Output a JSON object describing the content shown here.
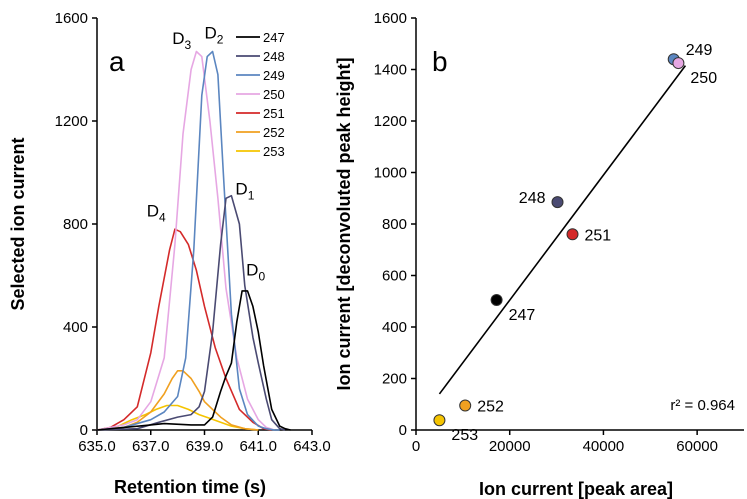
{
  "chart_data": [
    {
      "panel_label": "a",
      "type": "line",
      "xlabel": "Retention time (s)",
      "ylabel": "Selected ion current",
      "xlim": [
        635.0,
        643.0
      ],
      "ylim": [
        0,
        1600
      ],
      "x_ticks": [
        "635.0",
        "637.0",
        "639.0",
        "641.0",
        "643.0"
      ],
      "x_tick_values": [
        635,
        637,
        639,
        641,
        643
      ],
      "y_ticks": [
        "0",
        "400",
        "800",
        "1200",
        "1600"
      ],
      "y_tick_values": [
        0,
        400,
        800,
        1200,
        1600
      ],
      "legend_position": "top-right",
      "series": [
        {
          "name": "247",
          "color": "#000000",
          "peak_label": "D",
          "peak_sub": "0",
          "label_at": [
            640.55,
            600
          ],
          "x": [
            635.0,
            637.0,
            637.5,
            638.5,
            639.0,
            639.3,
            639.6,
            639.8,
            640.0,
            640.2,
            640.4,
            640.6,
            640.8,
            641.0,
            641.2,
            641.5,
            641.8,
            642.0,
            642.2
          ],
          "y": [
            0,
            20,
            25,
            20,
            20,
            50,
            150,
            210,
            260,
            420,
            540,
            540,
            480,
            380,
            250,
            80,
            15,
            5,
            0
          ]
        },
        {
          "name": "248",
          "color": "#4a4a72",
          "peak_label": "D",
          "peak_sub": "1",
          "label_at": [
            640.15,
            915
          ],
          "x": [
            635.0,
            636.5,
            637.3,
            638.0,
            638.5,
            638.8,
            639.0,
            639.3,
            639.6,
            639.8,
            640.0,
            640.3,
            640.5,
            640.8,
            641.0,
            641.3,
            641.5,
            641.8,
            642.0
          ],
          "y": [
            0,
            5,
            30,
            50,
            60,
            90,
            150,
            380,
            720,
            900,
            910,
            800,
            560,
            360,
            260,
            120,
            40,
            5,
            0
          ]
        },
        {
          "name": "249",
          "color": "#5b86c0",
          "peak_label": "D",
          "peak_sub": "2",
          "label_at": [
            639.0,
            1520
          ],
          "x": [
            635.0,
            636.0,
            637.0,
            637.5,
            638.0,
            638.3,
            638.6,
            638.9,
            639.1,
            639.3,
            639.5,
            639.7,
            640.0,
            640.3,
            640.6,
            641.0,
            641.3,
            641.6,
            641.8
          ],
          "y": [
            0,
            10,
            40,
            70,
            130,
            280,
            700,
            1300,
            1450,
            1470,
            1380,
            1000,
            450,
            160,
            60,
            15,
            5,
            0,
            0
          ]
        },
        {
          "name": "250",
          "color": "#e6a7e3",
          "peak_label": "D",
          "peak_sub": "3",
          "label_at": [
            637.8,
            1500
          ],
          "x": [
            635.0,
            636.0,
            636.5,
            637.0,
            637.5,
            637.9,
            638.2,
            638.5,
            638.7,
            638.9,
            639.2,
            639.5,
            639.8,
            640.2,
            640.6,
            641.0,
            641.3,
            641.6
          ],
          "y": [
            0,
            20,
            40,
            110,
            280,
            720,
            1150,
            1400,
            1470,
            1450,
            1200,
            900,
            550,
            280,
            120,
            40,
            10,
            0
          ]
        },
        {
          "name": "251",
          "color": "#d42a2a",
          "peak_label": "D",
          "peak_sub": "4",
          "label_at": [
            636.85,
            830
          ],
          "x": [
            635.0,
            635.5,
            636.0,
            636.5,
            637.0,
            637.3,
            637.7,
            637.9,
            638.1,
            638.4,
            638.7,
            639.0,
            639.4,
            639.8,
            640.3,
            640.8,
            641.2,
            641.5
          ],
          "y": [
            0,
            10,
            40,
            90,
            300,
            480,
            700,
            780,
            770,
            720,
            620,
            480,
            320,
            200,
            80,
            30,
            5,
            0
          ]
        },
        {
          "name": "252",
          "color": "#f0a020",
          "x": [
            635.0,
            636.0,
            636.5,
            637.0,
            637.5,
            637.8,
            638.0,
            638.2,
            638.5,
            638.8,
            639.0,
            639.3,
            639.6,
            640.0,
            640.5,
            641.0
          ],
          "y": [
            0,
            10,
            30,
            70,
            140,
            200,
            230,
            230,
            200,
            150,
            110,
            80,
            50,
            20,
            5,
            0
          ]
        },
        {
          "name": "253",
          "color": "#f5c400",
          "x": [
            635.0,
            635.8,
            636.3,
            636.8,
            637.2,
            637.6,
            638.0,
            638.4,
            638.8,
            639.2,
            639.6,
            640.0,
            640.5,
            641.0
          ],
          "y": [
            0,
            15,
            40,
            60,
            80,
            95,
            95,
            80,
            60,
            45,
            30,
            15,
            5,
            0
          ]
        }
      ]
    },
    {
      "panel_label": "b",
      "type": "scatter",
      "xlabel": "Ion current [peak area]",
      "ylabel": "Ion current [deconvoluted peak height]",
      "xlim": [
        0,
        70000
      ],
      "ylim": [
        0,
        1600
      ],
      "x_ticks": [
        "0",
        "20000",
        "40000",
        "60000"
      ],
      "x_tick_values": [
        0,
        20000,
        40000,
        60000
      ],
      "y_ticks": [
        "0",
        "200",
        "400",
        "600",
        "800",
        "1000",
        "1200",
        "1400",
        "1600"
      ],
      "y_tick_values": [
        0,
        200,
        400,
        600,
        800,
        1000,
        1200,
        1400,
        1600
      ],
      "annotation": "r² = 0.964",
      "fit_line": {
        "x": [
          5000,
          57500
        ],
        "y": [
          140,
          1415
        ]
      },
      "points": [
        {
          "label": "247",
          "x": 17200,
          "y": 505,
          "color": "#000000",
          "label_anchor": "below-right"
        },
        {
          "label": "248",
          "x": 30200,
          "y": 885,
          "color": "#4a4a72",
          "label_anchor": "left"
        },
        {
          "label": "249",
          "x": 55000,
          "y": 1440,
          "color": "#5b86c0",
          "label_anchor": "above-right"
        },
        {
          "label": "250",
          "x": 56000,
          "y": 1425,
          "color": "#e6a7e3",
          "label_anchor": "below-right"
        },
        {
          "label": "251",
          "x": 33400,
          "y": 760,
          "color": "#d42a2a",
          "label_anchor": "right"
        },
        {
          "label": "252",
          "x": 10500,
          "y": 95,
          "color": "#f0a020",
          "label_anchor": "right"
        },
        {
          "label": "253",
          "x": 5000,
          "y": 38,
          "color": "#f5c400",
          "label_anchor": "below-right"
        }
      ]
    }
  ]
}
